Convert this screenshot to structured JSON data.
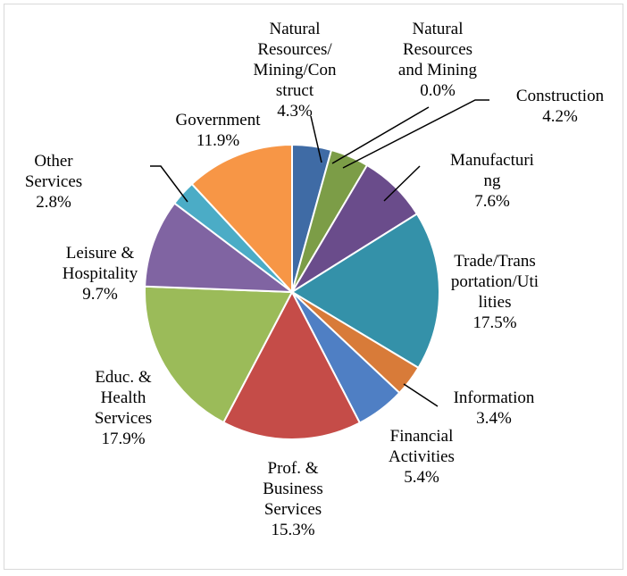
{
  "chart_data": {
    "type": "pie",
    "title": "",
    "slices": [
      {
        "label": [
          "Natural",
          "Resources/",
          "Mining/Con",
          "struct"
        ],
        "pct_text": "4.3%",
        "value": 4.3,
        "color": "#3f6ba5"
      },
      {
        "label": [
          "Natural",
          "Resources",
          "and Mining"
        ],
        "pct_text": "0.0%",
        "value": 0.0,
        "color": "#b54e4a"
      },
      {
        "label": [
          "Construction"
        ],
        "pct_text": "4.2%",
        "value": 4.2,
        "color": "#7c9d47"
      },
      {
        "label": [
          "Manufacturi",
          "ng"
        ],
        "pct_text": "7.6%",
        "value": 7.6,
        "color": "#6a4c8b"
      },
      {
        "label": [
          "Trade/Trans",
          "portation/Uti",
          "lities"
        ],
        "pct_text": "17.5%",
        "value": 17.5,
        "color": "#3491a9"
      },
      {
        "label": [
          "Information"
        ],
        "pct_text": "3.4%",
        "value": 3.4,
        "color": "#d87b39"
      },
      {
        "label": [
          "Financial",
          "Activities"
        ],
        "pct_text": "5.4%",
        "value": 5.4,
        "color": "#4f7fc4"
      },
      {
        "label": [
          "Prof. &",
          "Business",
          "Services"
        ],
        "pct_text": "15.3%",
        "value": 15.3,
        "color": "#c54c48"
      },
      {
        "label": [
          "Educ. &",
          "Health",
          "Services"
        ],
        "pct_text": "17.9%",
        "value": 17.9,
        "color": "#9bbb59"
      },
      {
        "label": [
          "Leisure &",
          "Hospitality"
        ],
        "pct_text": "9.7%",
        "value": 9.7,
        "color": "#8064a2"
      },
      {
        "label": [
          "Other",
          "Services"
        ],
        "pct_text": "2.8%",
        "value": 2.8,
        "color": "#4bacc6"
      },
      {
        "label": [
          "Government"
        ],
        "pct_text": "11.9%",
        "value": 11.9,
        "color": "#f79646"
      }
    ]
  }
}
